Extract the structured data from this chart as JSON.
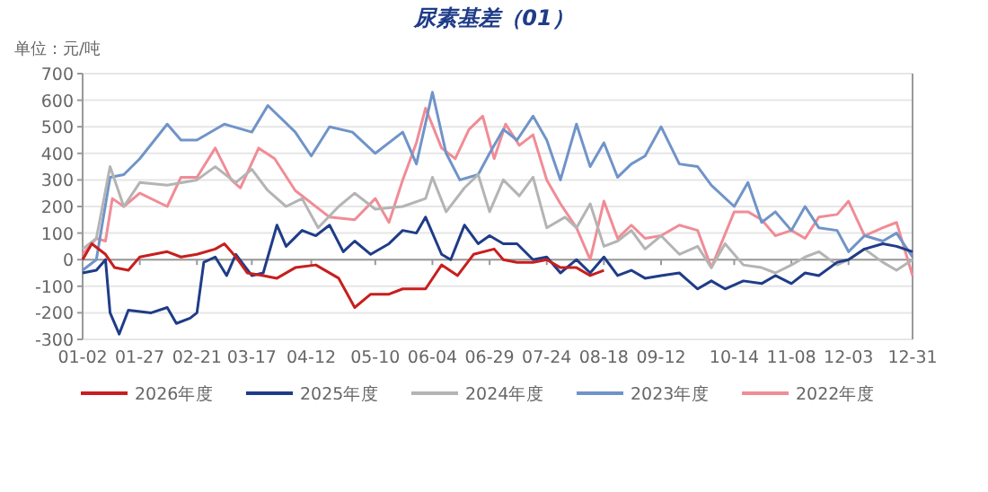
{
  "chart_data": {
    "type": "line",
    "title": "尿素基差（01）",
    "ylabel": "单位：元/吨",
    "grid": "y",
    "legend": "bottom",
    "line_style": "solid",
    "xlim": [
      "--01-02",
      "--12-31"
    ],
    "xticks": [
      {
        "value": "--01-02",
        "label": "01-02"
      },
      {
        "value": "--01-27",
        "label": "01-27"
      },
      {
        "value": "--02-21",
        "label": "02-21"
      },
      {
        "value": "--03-17",
        "label": "03-17"
      },
      {
        "value": "--04-12",
        "label": "04-12"
      },
      {
        "value": "--05-10",
        "label": "05-10"
      },
      {
        "value": "--06-04",
        "label": "06-04"
      },
      {
        "value": "--06-29",
        "label": "06-29"
      },
      {
        "value": "--07-24",
        "label": "07-24"
      },
      {
        "value": "--08-18",
        "label": "08-18"
      },
      {
        "value": "--09-12",
        "label": "09-12"
      },
      {
        "value": "--10-14",
        "label": "10-14"
      },
      {
        "value": "--11-08",
        "label": "11-08"
      },
      {
        "value": "--12-03",
        "label": "12-03"
      },
      {
        "value": "--12-31",
        "label": "12-31"
      }
    ],
    "ylim": [
      -300,
      700
    ],
    "yticks": [
      -300,
      -200,
      -100,
      0,
      100,
      200,
      300,
      400,
      500,
      600,
      700
    ],
    "series": [
      {
        "name": "2026年度",
        "color": "#c81e1e",
        "x": [
          "--01-02",
          "--01-06",
          "--01-12",
          "--01-16",
          "--01-22",
          "--01-27",
          "--02-08",
          "--02-14",
          "--02-21",
          "--03-01",
          "--03-05",
          "--03-10",
          "--03-15",
          "--03-22",
          "--03-28",
          "--04-05",
          "--04-14",
          "--04-24",
          "--05-01",
          "--05-08",
          "--05-16",
          "--05-22",
          "--06-01",
          "--06-08",
          "--06-15",
          "--06-22",
          "--07-01",
          "--07-05",
          "--07-11",
          "--07-18",
          "--07-24",
          "--07-30",
          "--08-06",
          "--08-12",
          "--08-18"
        ],
        "values": [
          0,
          60,
          20,
          -30,
          -40,
          10,
          30,
          10,
          20,
          40,
          60,
          10,
          -50,
          -60,
          -70,
          -30,
          -20,
          -70,
          -180,
          -130,
          -130,
          -110,
          -110,
          -20,
          -60,
          20,
          40,
          0,
          -10,
          -10,
          0,
          -30,
          -30,
          -60,
          -40
        ]
      },
      {
        "name": "2025年度",
        "color": "#1f3c88",
        "x": [
          "--01-02",
          "--01-08",
          "--01-12",
          "--01-14",
          "--01-18",
          "--01-22",
          "--02-01",
          "--02-08",
          "--02-12",
          "--02-18",
          "--02-21",
          "--02-24",
          "--03-01",
          "--03-06",
          "--03-10",
          "--03-17",
          "--03-22",
          "--03-28",
          "--04-01",
          "--04-08",
          "--04-14",
          "--04-20",
          "--04-26",
          "--05-01",
          "--05-08",
          "--05-16",
          "--05-22",
          "--05-28",
          "--06-01",
          "--06-08",
          "--06-12",
          "--06-18",
          "--06-24",
          "--06-29",
          "--07-05",
          "--07-11",
          "--07-18",
          "--07-24",
          "--07-30",
          "--08-06",
          "--08-12",
          "--08-18",
          "--08-24",
          "--08-30",
          "--09-05",
          "--09-12",
          "--09-20",
          "--09-28",
          "--10-04",
          "--10-10",
          "--10-18",
          "--10-26",
          "--11-01",
          "--11-08",
          "--11-14",
          "--11-20",
          "--11-28",
          "--12-03",
          "--12-10",
          "--12-18",
          "--12-24",
          "--12-31"
        ],
        "values": [
          -50,
          -40,
          0,
          -200,
          -280,
          -190,
          -200,
          -180,
          -240,
          -220,
          -200,
          -10,
          10,
          -60,
          20,
          -60,
          -50,
          130,
          50,
          110,
          90,
          130,
          30,
          70,
          20,
          60,
          110,
          100,
          160,
          20,
          0,
          130,
          60,
          90,
          60,
          60,
          0,
          10,
          -50,
          0,
          -50,
          10,
          -60,
          -40,
          -70,
          -60,
          -50,
          -110,
          -80,
          -110,
          -80,
          -90,
          -60,
          -90,
          -50,
          -60,
          -10,
          0,
          40,
          60,
          50,
          30
        ]
      },
      {
        "name": "2024年度",
        "color": "#b4b4b4",
        "x": [
          "--01-02",
          "--01-08",
          "--01-14",
          "--01-20",
          "--01-27",
          "--02-08",
          "--02-21",
          "--03-01",
          "--03-10",
          "--03-17",
          "--03-24",
          "--04-01",
          "--04-08",
          "--04-15",
          "--04-24",
          "--05-01",
          "--05-10",
          "--05-22",
          "--06-01",
          "--06-04",
          "--06-10",
          "--06-18",
          "--06-24",
          "--06-29",
          "--07-05",
          "--07-12",
          "--07-18",
          "--07-24",
          "--08-01",
          "--08-06",
          "--08-12",
          "--08-18",
          "--08-24",
          "--08-30",
          "--09-05",
          "--09-12",
          "--09-20",
          "--09-28",
          "--10-04",
          "--10-10",
          "--10-18",
          "--10-26",
          "--11-01",
          "--11-08",
          "--11-14",
          "--11-20",
          "--11-28",
          "--12-03",
          "--12-10",
          "--12-18",
          "--12-24",
          "--12-31"
        ],
        "values": [
          40,
          80,
          350,
          200,
          290,
          280,
          300,
          350,
          290,
          340,
          260,
          200,
          230,
          120,
          200,
          250,
          190,
          200,
          230,
          310,
          180,
          270,
          320,
          180,
          300,
          240,
          310,
          120,
          160,
          120,
          210,
          50,
          70,
          110,
          40,
          90,
          20,
          50,
          -30,
          60,
          -20,
          -30,
          -50,
          -20,
          10,
          30,
          -20,
          0,
          40,
          -10,
          -40,
          0
        ]
      },
      {
        "name": "2023年度",
        "color": "#7094c8",
        "x": [
          "--01-02",
          "--01-08",
          "--01-14",
          "--01-20",
          "--01-27",
          "--02-08",
          "--02-14",
          "--02-21",
          "--03-05",
          "--03-17",
          "--03-24",
          "--04-05",
          "--04-12",
          "--04-20",
          "--04-30",
          "--05-10",
          "--05-22",
          "--05-28",
          "--06-04",
          "--06-10",
          "--06-16",
          "--06-24",
          "--06-29",
          "--07-05",
          "--07-11",
          "--07-18",
          "--07-24",
          "--07-30",
          "--08-06",
          "--08-12",
          "--08-18",
          "--08-24",
          "--08-30",
          "--09-05",
          "--09-12",
          "--09-20",
          "--09-28",
          "--10-04",
          "--10-14",
          "--10-20",
          "--10-26",
          "--11-01",
          "--11-08",
          "--11-14",
          "--11-20",
          "--11-28",
          "--12-03",
          "--12-10",
          "--12-18",
          "--12-24",
          "--12-31"
        ],
        "values": [
          -40,
          0,
          310,
          320,
          380,
          510,
          450,
          450,
          510,
          480,
          580,
          480,
          390,
          500,
          480,
          400,
          480,
          360,
          630,
          400,
          300,
          320,
          400,
          490,
          450,
          540,
          450,
          300,
          510,
          350,
          440,
          310,
          360,
          390,
          500,
          360,
          350,
          280,
          200,
          290,
          140,
          180,
          110,
          200,
          120,
          110,
          30,
          90,
          70,
          100,
          10
        ]
      },
      {
        "name": "2022年度",
        "color": "#f08c96",
        "x": [
          "--01-02",
          "--01-08",
          "--01-12",
          "--01-15",
          "--01-20",
          "--01-27",
          "--02-08",
          "--02-14",
          "--02-21",
          "--03-01",
          "--03-08",
          "--03-12",
          "--03-20",
          "--03-27",
          "--04-05",
          "--04-20",
          "--05-01",
          "--05-10",
          "--05-16",
          "--05-22",
          "--05-28",
          "--06-01",
          "--06-08",
          "--06-14",
          "--06-20",
          "--06-26",
          "--07-01",
          "--07-06",
          "--07-12",
          "--07-18",
          "--07-24",
          "--07-30",
          "--08-06",
          "--08-12",
          "--08-18",
          "--08-24",
          "--08-30",
          "--09-05",
          "--09-12",
          "--09-20",
          "--09-28",
          "--10-04",
          "--10-14",
          "--10-20",
          "--10-26",
          "--11-01",
          "--11-08",
          "--11-14",
          "--11-20",
          "--11-28",
          "--12-03",
          "--12-10",
          "--12-18",
          "--12-24",
          "--12-31"
        ],
        "values": [
          20,
          80,
          70,
          230,
          200,
          250,
          200,
          310,
          310,
          420,
          300,
          270,
          420,
          380,
          260,
          160,
          150,
          230,
          140,
          300,
          440,
          570,
          420,
          380,
          490,
          540,
          380,
          510,
          430,
          470,
          300,
          210,
          120,
          0,
          220,
          80,
          130,
          80,
          90,
          130,
          110,
          -30,
          180,
          180,
          150,
          90,
          110,
          80,
          160,
          170,
          220,
          90,
          120,
          140,
          -60
        ]
      }
    ]
  }
}
